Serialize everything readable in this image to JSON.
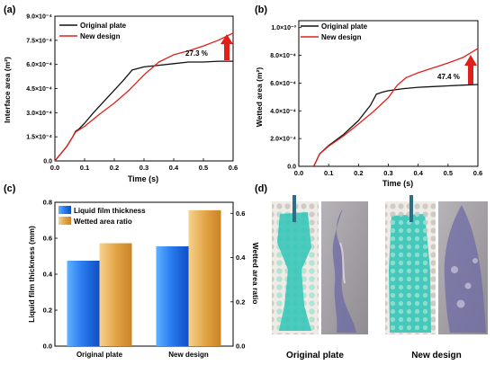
{
  "panels": {
    "a": {
      "letter": "(a)",
      "annotation": "27.3 %",
      "ytick_exponent": "×10⁻⁴"
    },
    "b": {
      "letter": "(b)",
      "annotation": "47.4 %",
      "ytick_exponent_top": "×10⁻³",
      "ytick_exponent": "×10⁻⁴"
    },
    "c": {
      "letter": "(c)"
    },
    "d": {
      "letter": "(d)",
      "caption_left": "Original plate",
      "caption_right": "New design"
    }
  },
  "colors": {
    "original": "#111111",
    "new_design": "#e0201b",
    "arrow": "#e0201b",
    "bar_blue": "#1f6fe6",
    "bar_orange": "#e0a64a"
  },
  "chart_data": [
    {
      "id": "a",
      "type": "line",
      "xlabel": "Time (s)",
      "ylabel": "Interface area (m²)",
      "xlim": [
        0,
        0.6
      ],
      "ylim": [
        0,
        9.0
      ],
      "y_unit_scale": "1e-4",
      "xticks": [
        "0.0",
        "0.1",
        "0.2",
        "0.3",
        "0.4",
        "0.5",
        "0.6"
      ],
      "yticks": [
        {
          "v": 0,
          "label": "0.0"
        },
        {
          "v": 1.5,
          "label": "1.5×10⁻⁴"
        },
        {
          "v": 3.0,
          "label": "3.0×10⁻⁴"
        },
        {
          "v": 4.5,
          "label": "4.5×10⁻⁴"
        },
        {
          "v": 6.0,
          "label": "6.0×10⁻⁴"
        },
        {
          "v": 7.5,
          "label": "7.5×10⁻⁴"
        },
        {
          "v": 9.0,
          "label": "9.0×10⁻⁴"
        }
      ],
      "legend_position": "top-left",
      "series": [
        {
          "name": "Original plate",
          "color": "#111111",
          "points": [
            [
              0.0,
              0.0
            ],
            [
              0.02,
              0.45
            ],
            [
              0.04,
              0.9
            ],
            [
              0.06,
              1.5
            ],
            [
              0.07,
              1.85
            ],
            [
              0.08,
              1.97
            ],
            [
              0.1,
              2.35
            ],
            [
              0.13,
              3.0
            ],
            [
              0.16,
              3.6
            ],
            [
              0.2,
              4.4
            ],
            [
              0.23,
              5.0
            ],
            [
              0.26,
              5.65
            ],
            [
              0.3,
              5.85
            ],
            [
              0.35,
              5.95
            ],
            [
              0.4,
              6.05
            ],
            [
              0.45,
              6.15
            ],
            [
              0.5,
              6.15
            ],
            [
              0.55,
              6.2
            ],
            [
              0.6,
              6.2
            ]
          ]
        },
        {
          "name": "New design",
          "color": "#e0201b",
          "points": [
            [
              0.0,
              0.0
            ],
            [
              0.02,
              0.45
            ],
            [
              0.04,
              0.9
            ],
            [
              0.06,
              1.5
            ],
            [
              0.07,
              1.8
            ],
            [
              0.08,
              1.92
            ],
            [
              0.1,
              2.15
            ],
            [
              0.15,
              2.9
            ],
            [
              0.2,
              3.6
            ],
            [
              0.25,
              4.4
            ],
            [
              0.3,
              5.35
            ],
            [
              0.35,
              6.15
            ],
            [
              0.4,
              6.6
            ],
            [
              0.45,
              6.85
            ],
            [
              0.5,
              7.15
            ],
            [
              0.55,
              7.5
            ],
            [
              0.6,
              7.95
            ]
          ]
        }
      ]
    },
    {
      "id": "b",
      "type": "line",
      "xlabel": "Time (s)",
      "ylabel": "Wetted area (m²)",
      "xlim": [
        0,
        0.6
      ],
      "ylim": [
        0,
        10.5
      ],
      "y_unit_scale": "1e-4",
      "xticks": [
        "0.0",
        "0.1",
        "0.2",
        "0.3",
        "0.4",
        "0.5",
        "0.6"
      ],
      "yticks": [
        {
          "v": 0,
          "label": "0.0"
        },
        {
          "v": 2.0,
          "label": "2.0×10⁻⁴"
        },
        {
          "v": 4.0,
          "label": "4.0×10⁻⁴"
        },
        {
          "v": 6.0,
          "label": "6.0×10⁻⁴"
        },
        {
          "v": 8.0,
          "label": "8.0×10⁻⁴"
        },
        {
          "v": 10.0,
          "label": "1.0×10⁻³"
        }
      ],
      "legend_position": "top-left",
      "series": [
        {
          "name": "Original plate",
          "color": "#111111",
          "points": [
            [
              0.05,
              0.0
            ],
            [
              0.07,
              0.9
            ],
            [
              0.1,
              1.5
            ],
            [
              0.15,
              2.3
            ],
            [
              0.2,
              3.3
            ],
            [
              0.24,
              4.4
            ],
            [
              0.26,
              5.2
            ],
            [
              0.28,
              5.35
            ],
            [
              0.3,
              5.45
            ],
            [
              0.35,
              5.6
            ],
            [
              0.4,
              5.7
            ],
            [
              0.45,
              5.75
            ],
            [
              0.5,
              5.8
            ],
            [
              0.55,
              5.85
            ],
            [
              0.6,
              5.9
            ]
          ]
        },
        {
          "name": "New design",
          "color": "#e0201b",
          "points": [
            [
              0.05,
              0.0
            ],
            [
              0.07,
              0.9
            ],
            [
              0.1,
              1.45
            ],
            [
              0.15,
              2.2
            ],
            [
              0.2,
              3.05
            ],
            [
              0.25,
              3.95
            ],
            [
              0.3,
              4.95
            ],
            [
              0.33,
              5.85
            ],
            [
              0.36,
              6.4
            ],
            [
              0.4,
              6.75
            ],
            [
              0.45,
              7.1
            ],
            [
              0.5,
              7.45
            ],
            [
              0.55,
              7.85
            ],
            [
              0.6,
              8.5
            ]
          ]
        }
      ]
    },
    {
      "id": "c",
      "type": "bar",
      "categories": [
        "Original plate",
        "New design"
      ],
      "ylabel_left": "Liquid film thickness (mm)",
      "ylabel_right": "Wetted area ratio",
      "ylim_left": [
        0,
        0.8
      ],
      "ylim_right": [
        0,
        0.65
      ],
      "yticks_left": [
        "0.0",
        "0.2",
        "0.4",
        "0.6",
        "0.8"
      ],
      "yticks_right": [
        "0.0",
        "0.2",
        "0.4",
        "0.6"
      ],
      "yticks_left_values": [
        0,
        0.2,
        0.4,
        0.6,
        0.8
      ],
      "yticks_right_values": [
        0,
        0.2,
        0.4,
        0.6
      ],
      "legend_position": "top-left",
      "series": [
        {
          "name": "Liquid film thickness",
          "axis": "left",
          "color": "#1f6fe6",
          "values": [
            0.475,
            0.555
          ]
        },
        {
          "name": "Wetted area ratio",
          "axis": "right",
          "color": "#e0a64a",
          "values": [
            0.465,
            0.614
          ]
        }
      ]
    }
  ]
}
